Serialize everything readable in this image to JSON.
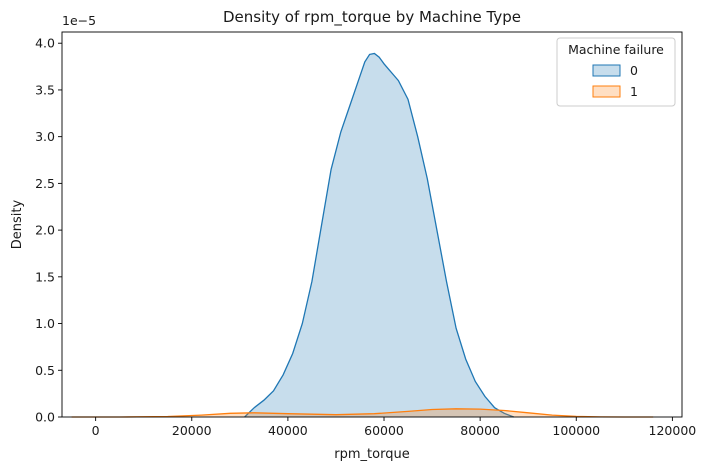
{
  "chart_data": {
    "type": "area",
    "title": "Density of rpm_torque by Machine Type",
    "xlabel": "rpm_torque",
    "ylabel": "Density",
    "y_offset_label": "1e−5",
    "xlim": [
      -7000,
      122000
    ],
    "ylim": [
      0,
      4.12e-05
    ],
    "x_ticks": [
      0,
      20000,
      40000,
      60000,
      80000,
      100000,
      120000
    ],
    "x_tick_labels": [
      "0",
      "20000",
      "40000",
      "60000",
      "80000",
      "100000",
      "120000"
    ],
    "y_ticks": [
      0,
      5e-06,
      1e-05,
      1.5e-05,
      2e-05,
      2.5e-05,
      3e-05,
      3.5e-05,
      4e-05
    ],
    "y_tick_labels": [
      "0.0",
      "0.5",
      "1.0",
      "1.5",
      "2.0",
      "2.5",
      "3.0",
      "3.5",
      "4.0"
    ],
    "grid": false,
    "legend": {
      "title": "Machine failure",
      "placement": "top-right"
    },
    "series": [
      {
        "name": "0",
        "color": "#1f77b4",
        "x": [
          31000,
          33000,
          35000,
          37000,
          39000,
          41000,
          43000,
          45000,
          47000,
          49000,
          51000,
          53000,
          55000,
          56000,
          57000,
          58000,
          59000,
          60000,
          61000,
          62000,
          63000,
          65000,
          67000,
          69000,
          71000,
          73000,
          75000,
          77000,
          79000,
          81000,
          83000,
          85000,
          87000
        ],
        "y": [
          0.0,
          1e-06,
          1.8e-06,
          2.8e-06,
          4.5e-06,
          6.8e-06,
          1e-05,
          1.45e-05,
          2.05e-05,
          2.65e-05,
          3.05e-05,
          3.35e-05,
          3.65e-05,
          3.8e-05,
          3.88e-05,
          3.89e-05,
          3.85e-05,
          3.78e-05,
          3.72e-05,
          3.66e-05,
          3.6e-05,
          3.4e-05,
          3e-05,
          2.55e-05,
          2e-05,
          1.45e-05,
          9.5e-06,
          6.2e-06,
          3.8e-06,
          2.2e-06,
          1e-06,
          4e-07,
          0.0
        ]
      },
      {
        "name": "1",
        "color": "#ff7f0e",
        "x": [
          -5000,
          5000,
          15000,
          22000,
          28000,
          33000,
          40000,
          50000,
          58000,
          65000,
          70000,
          75000,
          80000,
          85000,
          90000,
          95000,
          100000,
          105000,
          110000,
          116000
        ],
        "y": [
          0.0,
          0.0,
          5e-08,
          2e-07,
          4e-07,
          4.5e-07,
          3.5e-07,
          2.5e-07,
          3.5e-07,
          6e-07,
          8e-07,
          8.8e-07,
          8.5e-07,
          7e-07,
          4.5e-07,
          2e-07,
          6e-08,
          1e-08,
          0.0,
          0.0
        ]
      }
    ]
  }
}
